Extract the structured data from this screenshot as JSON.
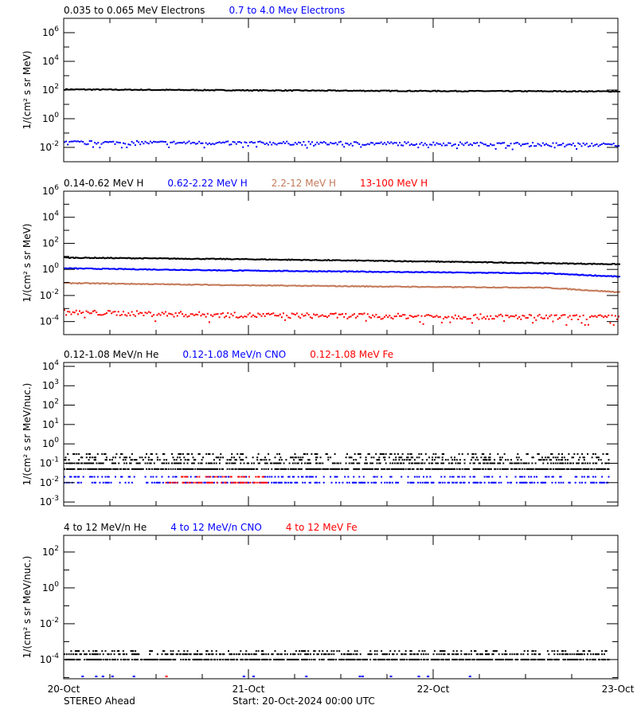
{
  "chart_data": [
    {
      "type": "scatter",
      "ylabel": "1/(cm² s sr MeV)",
      "yscale": "log",
      "ylim_log10": [
        -3,
        7
      ],
      "ytick_exponents": [
        6,
        4,
        2,
        0,
        -2
      ],
      "series": [
        {
          "name": "0.035 to 0.065 MeV Electrons",
          "color": "#000000",
          "mode": "line",
          "x": [
            0,
            1,
            2,
            3
          ],
          "y": [
            110,
            95,
            85,
            80
          ],
          "scatter_log10": 0.03
        },
        {
          "name": "0.7 to 4.0 Mev Electrons",
          "color": "#0000ff",
          "mode": "dots",
          "x": [
            0,
            1,
            2,
            3
          ],
          "y": [
            0.022,
            0.02,
            0.018,
            0.015
          ],
          "scatter_log10": 0.12
        }
      ]
    },
    {
      "type": "scatter",
      "ylabel": "1/(cm² s sr MeV)",
      "yscale": "log",
      "ylim_log10": [
        -5,
        6
      ],
      "ytick_exponents": [
        6,
        4,
        2,
        0,
        -2,
        -4
      ],
      "series": [
        {
          "name": "0.14-0.62 MeV H",
          "color": "#000000",
          "mode": "line",
          "x": [
            0,
            1,
            2,
            2.6,
            3
          ],
          "y": [
            8,
            6,
            4,
            3,
            2.5
          ],
          "scatter_log10": 0.03
        },
        {
          "name": "0.62-2.22 MeV H",
          "color": "#0000ff",
          "mode": "line",
          "x": [
            0,
            1,
            2,
            2.6,
            3
          ],
          "y": [
            1.2,
            0.8,
            0.6,
            0.5,
            0.28
          ],
          "scatter_log10": 0.03
        },
        {
          "name": "2.2-12 MeV H",
          "color": "#c47a5a",
          "mode": "line",
          "x": [
            0,
            1,
            2,
            2.6,
            3
          ],
          "y": [
            0.09,
            0.06,
            0.045,
            0.04,
            0.018
          ],
          "scatter_log10": 0.03
        },
        {
          "name": "13-100 MeV H",
          "color": "#ff0000",
          "mode": "dots",
          "x": [
            0,
            1,
            2,
            3
          ],
          "y": [
            0.0005,
            0.0003,
            0.00025,
            0.0002
          ],
          "scatter_log10": 0.2
        }
      ]
    },
    {
      "type": "scatter",
      "ylabel": "1/(cm² s sr MeV/nuc.)",
      "yscale": "log",
      "ylim_log10": [
        -3.2,
        4.2
      ],
      "ytick_exponents": [
        4,
        3,
        2,
        1,
        0,
        -1,
        -2,
        -3
      ],
      "series": [
        {
          "name": "0.12-1.08 MeV/n He",
          "color": "#000000",
          "mode": "quantized",
          "levels": [
            0.05,
            0.1,
            0.15,
            0.2,
            0.3
          ]
        },
        {
          "name": "0.12-1.08 MeV/n CNO",
          "color": "#0000ff",
          "mode": "quantized",
          "levels": [
            0.01,
            0.02
          ]
        },
        {
          "name": "0.12-1.08 MeV Fe",
          "color": "#ff0000",
          "mode": "quantized",
          "levels": [
            0.01,
            0.02
          ],
          "x_range": [
            0.55,
            1.1
          ]
        }
      ]
    },
    {
      "type": "scatter",
      "ylabel": "1/(cm² s sr MeV/nuc.)",
      "yscale": "log",
      "ylim_log10": [
        -5.07,
        2.93
      ],
      "ytick_exponents": [
        2,
        0,
        -2,
        -4
      ],
      "series": [
        {
          "name": "4 to 12 MeV/n He",
          "color": "#000000",
          "mode": "quantized",
          "levels": [
            0.0001,
            0.0002,
            0.0003
          ]
        },
        {
          "name": "4 to 12 MeV/n CNO",
          "color": "#0000ff",
          "mode": "sparse",
          "levels": [
            1e-05
          ]
        },
        {
          "name": "4 to 12 MeV Fe",
          "color": "#ff0000",
          "mode": "sparse",
          "levels": [
            1e-05
          ]
        }
      ]
    }
  ],
  "x_axis": {
    "unit": "days",
    "range": [
      0,
      3
    ],
    "tick_labels": [
      "20-Oct",
      "21-Oct",
      "22-Oct",
      "23-Oct"
    ]
  },
  "footer": {
    "spacecraft": "STEREO Ahead",
    "start": "Start: 20-Oct-2024 00:00 UTC"
  }
}
